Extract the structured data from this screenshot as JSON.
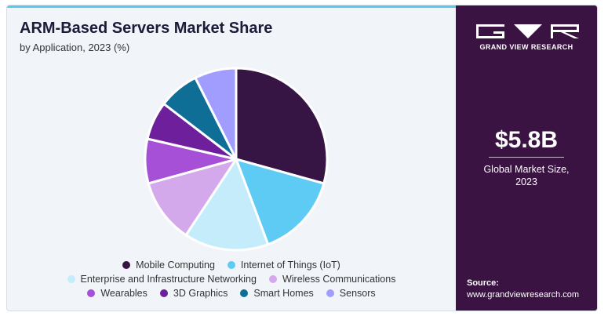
{
  "header": {
    "title": "ARM-Based Servers Market Share",
    "subtitle": "by Application, 2023 (%)"
  },
  "brand": {
    "name": "GRAND VIEW RESEARCH",
    "panel_color": "#3a1343"
  },
  "stat": {
    "value": "$5.8B",
    "label_line1": "Global Market Size,",
    "label_line2": "2023"
  },
  "source": {
    "label": "Source:",
    "url": "www.grandviewresearch.com"
  },
  "chart_data": {
    "type": "pie",
    "title": "ARM-Based Servers Market Share",
    "subtitle": "by Application, 2023 (%)",
    "legend_position": "bottom",
    "categories": [
      "Mobile Computing",
      "Internet of Things (IoT)",
      "Enterprise and Infrastructure Networking",
      "Wireless Communications",
      "Wearables",
      "3D Graphics",
      "Smart Homes",
      "Sensors"
    ],
    "values": [
      29.3,
      15.0,
      15.0,
      11.4,
      7.9,
      6.8,
      7.2,
      7.4
    ],
    "colors": [
      "#361443",
      "#5ecbf4",
      "#c4ecfb",
      "#d4a9ec",
      "#a650d8",
      "#6e1f9b",
      "#0f6e96",
      "#a09dff"
    ]
  }
}
